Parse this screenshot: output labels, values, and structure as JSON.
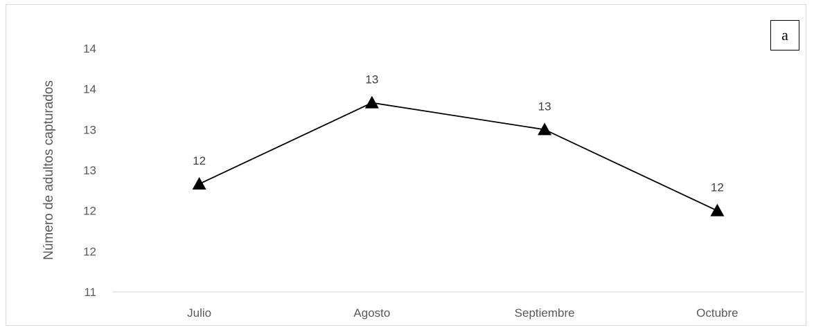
{
  "chart_data": {
    "type": "line",
    "categories": [
      "Julio",
      "Agosto",
      "Septiembre",
      "Octubre"
    ],
    "series": [
      {
        "values": [
          12.33,
          13.33,
          13.0,
          12.0
        ],
        "data_labels": [
          "12",
          "13",
          "13",
          "12"
        ],
        "color": "#000000",
        "marker": "triangle"
      }
    ],
    "y_ticks": [
      11,
      11.5,
      12,
      12.5,
      13,
      13.5,
      14
    ],
    "y_tick_labels": [
      "11",
      "12",
      "12",
      "13",
      "13",
      "14",
      "14"
    ],
    "ylim": [
      11,
      14
    ],
    "ylabel": "Número de adultos capturados",
    "xlabel": "",
    "grid": false,
    "panel_label": "a"
  }
}
